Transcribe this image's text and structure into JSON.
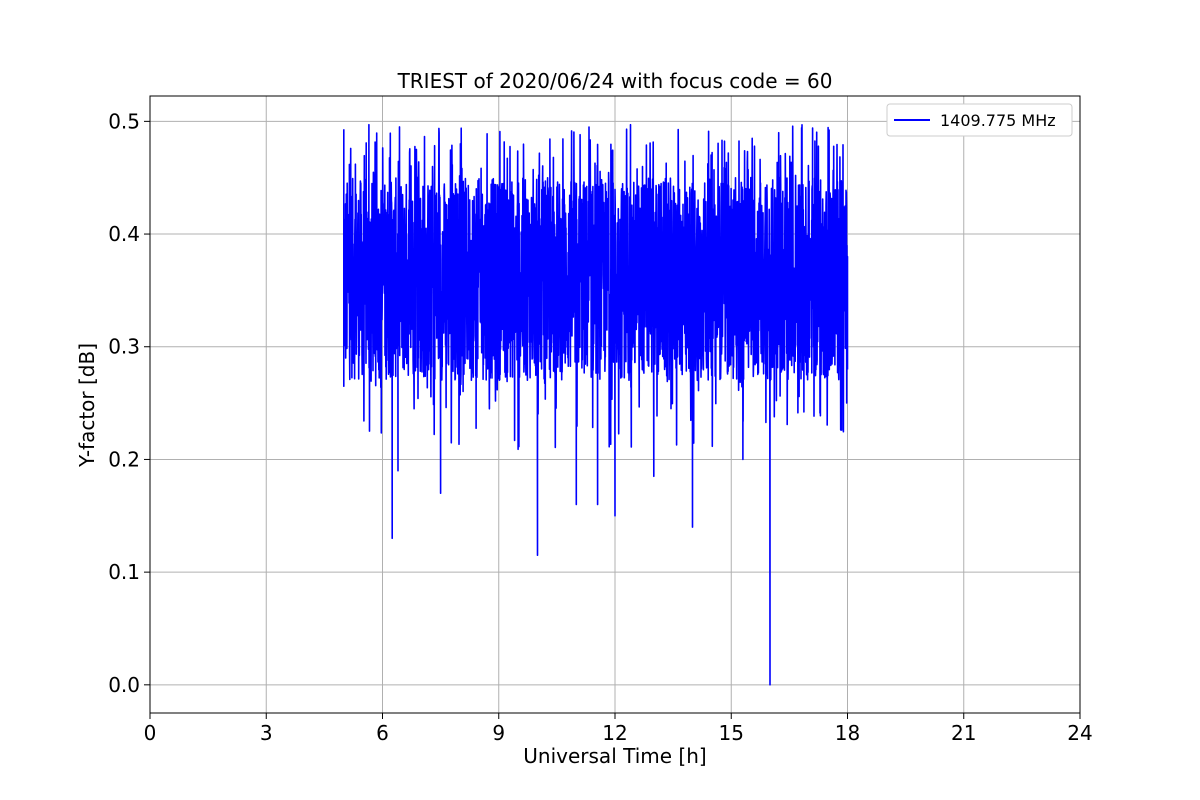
{
  "chart_data": {
    "type": "line",
    "title": "TRIEST of 2020/06/24 with focus code = 60",
    "xlabel": "Universal Time [h]",
    "ylabel": "Y-factor [dB]",
    "xlim": [
      0,
      24
    ],
    "ylim": [
      -0.025,
      0.5225
    ],
    "xticks": [
      0,
      3,
      6,
      9,
      12,
      15,
      18,
      21,
      24
    ],
    "yticks": [
      0.0,
      0.1,
      0.2,
      0.3,
      0.4,
      0.5
    ],
    "xtick_labels": [
      "0",
      "3",
      "6",
      "9",
      "12",
      "15",
      "18",
      "21",
      "24"
    ],
    "ytick_labels": [
      "0.0",
      "0.1",
      "0.2",
      "0.3",
      "0.4",
      "0.5"
    ],
    "grid": true,
    "legend_position": "top-right",
    "series": [
      {
        "name": "1409.775 MHz",
        "color": "#0000ff",
        "x_range": [
          5.0,
          18.0
        ],
        "typical_band": [
          0.27,
          0.45
        ],
        "max": 0.497,
        "features": [
          {
            "x": 5.0,
            "y": 0.493
          },
          {
            "x": 5.0,
            "y": 0.265
          },
          {
            "x": 5.65,
            "y": 0.497
          },
          {
            "x": 6.25,
            "y": 0.13
          },
          {
            "x": 6.4,
            "y": 0.19
          },
          {
            "x": 7.5,
            "y": 0.17
          },
          {
            "x": 8.7,
            "y": 0.489
          },
          {
            "x": 9.5,
            "y": 0.209
          },
          {
            "x": 10.0,
            "y": 0.115
          },
          {
            "x": 11.0,
            "y": 0.16
          },
          {
            "x": 11.55,
            "y": 0.16
          },
          {
            "x": 12.0,
            "y": 0.15
          },
          {
            "x": 12.4,
            "y": 0.497
          },
          {
            "x": 13.0,
            "y": 0.185
          },
          {
            "x": 14.0,
            "y": 0.14
          },
          {
            "x": 15.3,
            "y": 0.2
          },
          {
            "x": 16.0,
            "y": 0.0
          },
          {
            "x": 17.1,
            "y": 0.494
          },
          {
            "x": 17.85,
            "y": 0.226
          },
          {
            "x": 18.0,
            "y": 0.38
          }
        ]
      }
    ]
  }
}
